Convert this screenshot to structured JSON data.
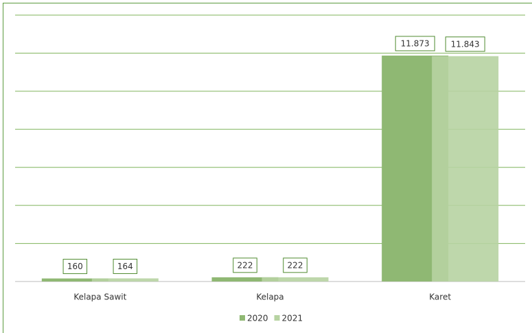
{
  "chart_data": {
    "type": "bar",
    "categories": [
      "Kelapa Sawit",
      "Kelapa",
      "Karet"
    ],
    "series": [
      {
        "name": "2020",
        "color": "#8fb873",
        "values": [
          160,
          222,
          11873
        ],
        "value_labels": [
          "160",
          "222",
          "11.873"
        ]
      },
      {
        "name": "2021",
        "color": "#b7d3a2",
        "values": [
          164,
          222,
          11843
        ],
        "value_labels": [
          "164",
          "222",
          "11.843"
        ]
      }
    ],
    "ylim": [
      0,
      14000
    ],
    "yticks": [
      0,
      2000,
      4000,
      6000,
      8000,
      10000,
      12000,
      14000
    ],
    "grid": true,
    "legend": "bottom"
  }
}
